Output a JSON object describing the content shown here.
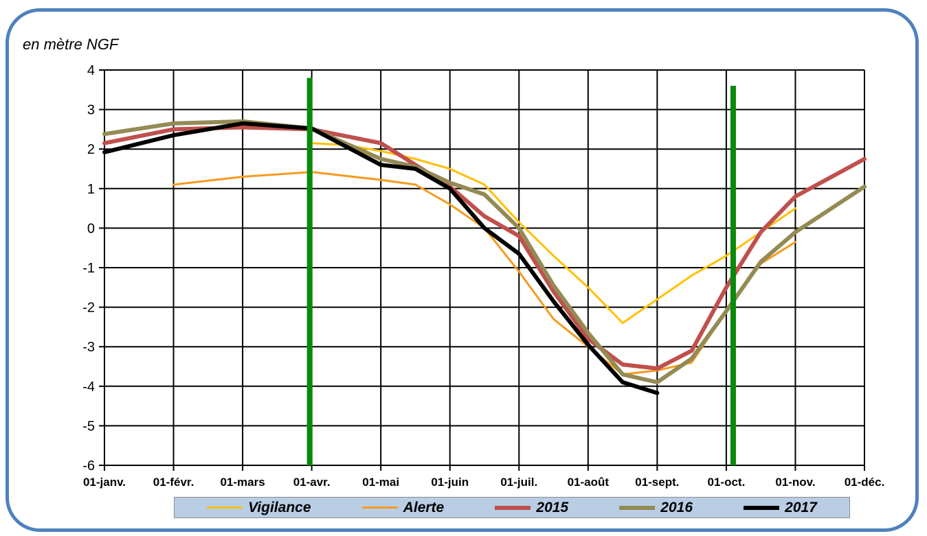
{
  "title": "",
  "y_unit_label": "en mètre NGF",
  "chart_data": {
    "type": "line",
    "ylabel": "en mètre NGF",
    "xlabel": "",
    "ylim": [
      -6,
      4
    ],
    "yticks": [
      -6,
      -5,
      -4,
      -3,
      -2,
      -1,
      0,
      1,
      2,
      3,
      4
    ],
    "xlim": [
      0,
      11
    ],
    "month_labels": [
      "01-janv.",
      "01-févr.",
      "01-mars",
      "01-avr.",
      "01-mai",
      "01-juin",
      "01-juil.",
      "01-août",
      "01-sept.",
      "01-oct.",
      "01-nov.",
      "01-déc."
    ],
    "grid": true,
    "legend_position": "bottom",
    "period_markers": [
      {
        "x": 2.97,
        "ytop": 3.8,
        "color": "#0a8a0a"
      },
      {
        "x": 9.1,
        "ytop": 3.6,
        "color": "#0a8a0a"
      }
    ],
    "series": [
      {
        "name": "Vigilance",
        "color": "#ffc000",
        "width": 3,
        "x": [
          3.0,
          3.5,
          4.0,
          4.5,
          5.0,
          5.5,
          6.0,
          6.5,
          7.0,
          7.5,
          8.0,
          8.5,
          9.0,
          9.5,
          10.0
        ],
        "y": [
          2.15,
          2.1,
          1.95,
          1.75,
          1.5,
          1.1,
          0.15,
          -0.7,
          -1.5,
          -2.4,
          -1.8,
          -1.2,
          -0.7,
          -0.1,
          0.5
        ]
      },
      {
        "name": "Alerte",
        "color": "#f79a1e",
        "width": 3,
        "x": [
          1.0,
          2.0,
          3.0,
          4.0,
          4.5,
          5.0,
          5.5,
          6.0,
          6.5,
          7.0,
          7.5,
          8.0,
          8.5,
          9.0,
          9.5,
          10.0
        ],
        "y": [
          1.1,
          1.3,
          1.42,
          1.22,
          1.1,
          0.6,
          0.0,
          -1.1,
          -2.3,
          -3.0,
          -3.7,
          -3.6,
          -3.4,
          -2.1,
          -0.9,
          -0.35
        ]
      },
      {
        "name": "2015",
        "color": "#c0504d",
        "width": 6,
        "x": [
          0.0,
          1.0,
          2.0,
          3.0,
          4.0,
          4.5,
          5.0,
          5.5,
          6.0,
          6.5,
          7.0,
          7.5,
          8.0,
          8.5,
          9.0,
          9.5,
          10.0,
          11.0
        ],
        "y": [
          2.15,
          2.5,
          2.55,
          2.5,
          2.15,
          1.6,
          1.05,
          0.3,
          -0.2,
          -1.6,
          -2.8,
          -3.45,
          -3.55,
          -3.1,
          -1.5,
          -0.1,
          0.8,
          1.75
        ]
      },
      {
        "name": "2016",
        "color": "#948a54",
        "width": 6,
        "x": [
          0.0,
          1.0,
          2.0,
          3.0,
          4.0,
          4.5,
          5.0,
          5.5,
          6.0,
          6.5,
          7.0,
          7.5,
          8.0,
          8.5,
          9.0,
          9.5,
          10.0,
          11.0
        ],
        "y": [
          2.38,
          2.65,
          2.7,
          2.52,
          1.75,
          1.55,
          1.15,
          0.85,
          0.0,
          -1.45,
          -2.65,
          -3.7,
          -3.9,
          -3.3,
          -2.1,
          -0.85,
          -0.1,
          1.05
        ]
      },
      {
        "name": "2017",
        "color": "#000000",
        "width": 6,
        "x": [
          0.0,
          1.0,
          2.0,
          3.0,
          4.0,
          4.5,
          5.0,
          5.5,
          6.0,
          6.5,
          7.0,
          7.5,
          8.0
        ],
        "y": [
          1.92,
          2.35,
          2.65,
          2.52,
          1.6,
          1.5,
          1.0,
          0.0,
          -0.65,
          -1.85,
          -2.95,
          -3.9,
          -4.17
        ]
      }
    ]
  }
}
